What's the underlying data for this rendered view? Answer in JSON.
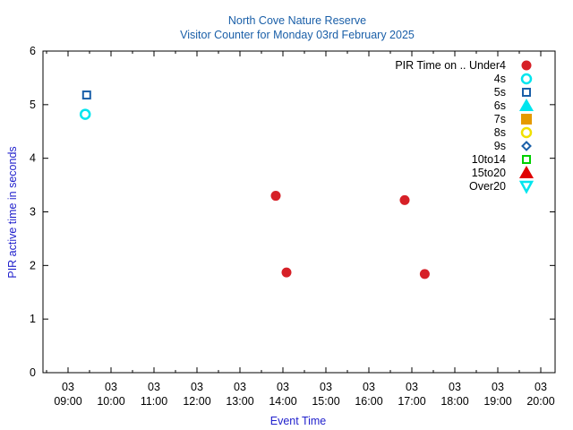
{
  "chart_data": {
    "type": "scatter",
    "title": "North Cove Nature Reserve",
    "subtitle": "Visitor Counter for Monday 03rd February 2025",
    "xlabel": "Event Time",
    "ylabel": "PIR active time in seconds",
    "xlim": [
      "09:00",
      "20:00"
    ],
    "ylim": [
      0,
      6
    ],
    "x_ticks": [
      {
        "day": "03",
        "time": "09:00"
      },
      {
        "day": "03",
        "time": "10:00"
      },
      {
        "day": "03",
        "time": "11:00"
      },
      {
        "day": "03",
        "time": "12:00"
      },
      {
        "day": "03",
        "time": "13:00"
      },
      {
        "day": "03",
        "time": "14:00"
      },
      {
        "day": "03",
        "time": "15:00"
      },
      {
        "day": "03",
        "time": "16:00"
      },
      {
        "day": "03",
        "time": "17:00"
      },
      {
        "day": "03",
        "time": "18:00"
      },
      {
        "day": "03",
        "time": "19:00"
      },
      {
        "day": "03",
        "time": "20:00"
      }
    ],
    "y_ticks": [
      "0",
      "1",
      "2",
      "3",
      "4",
      "5",
      "6"
    ],
    "grid": false,
    "legend_placement": "top-right",
    "series": [
      {
        "name": "PIR Time on .. Under4",
        "marker": "filled-circle",
        "color": "#d62027",
        "points": [
          {
            "x": "13:50",
            "y": 3.3
          },
          {
            "x": "14:05",
            "y": 1.87
          },
          {
            "x": "16:50",
            "y": 3.22
          },
          {
            "x": "17:18",
            "y": 1.84
          }
        ]
      },
      {
        "name": "4s",
        "marker": "open-circle",
        "color": "#00e5ee",
        "points": [
          {
            "x": "09:24",
            "y": 4.82
          }
        ]
      },
      {
        "name": "5s",
        "marker": "open-square",
        "color": "#1a5fa8",
        "points": [
          {
            "x": "09:26",
            "y": 5.18
          }
        ]
      },
      {
        "name": "6s",
        "marker": "filled-triangle-up",
        "color": "#00e5ee",
        "points": []
      },
      {
        "name": "7s",
        "marker": "filled-square",
        "color": "#e59a00",
        "points": []
      },
      {
        "name": "8s",
        "marker": "open-circle",
        "color": "#f0e000",
        "points": []
      },
      {
        "name": "9s",
        "marker": "open-diamond",
        "color": "#1a5fa8",
        "points": []
      },
      {
        "name": "10to14",
        "marker": "open-square",
        "color": "#00d000",
        "points": []
      },
      {
        "name": "15to20",
        "marker": "filled-triangle-up",
        "color": "#e00000",
        "points": []
      },
      {
        "name": "Over20",
        "marker": "open-triangle-down",
        "color": "#00e5ee",
        "points": []
      }
    ]
  }
}
